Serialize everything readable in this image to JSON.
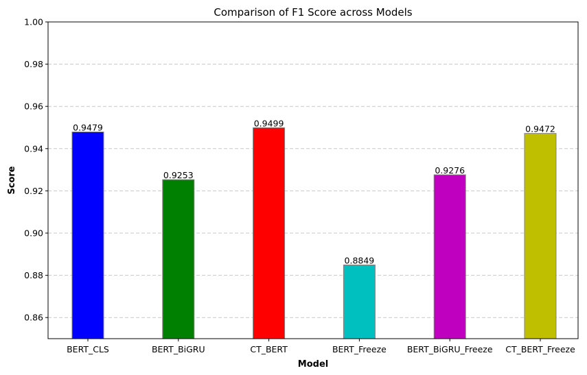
{
  "chart_data": {
    "type": "bar",
    "title": "Comparison of F1 Score across Models",
    "xlabel": "Model",
    "ylabel": "Score",
    "categories": [
      "BERT_CLS",
      "BERT_BiGRU",
      "CT_BERT",
      "BERT_Freeze",
      "BERT_BiGRU_Freeze",
      "CT_BERT_Freeze"
    ],
    "values": [
      0.9479,
      0.9253,
      0.9499,
      0.8849,
      0.9276,
      0.9472
    ],
    "data_labels": [
      "0.9479",
      "0.9253",
      "0.9499",
      "0.8849",
      "0.9276",
      "0.9472"
    ],
    "colors": [
      "#0000ff",
      "#008000",
      "#ff0000",
      "#00bfbf",
      "#bf00bf",
      "#bfbf00"
    ],
    "bar_edge_color": "#808080",
    "ylim": [
      0.85,
      1.0
    ],
    "yticks": [
      0.86,
      0.88,
      0.9,
      0.92,
      0.94,
      0.96,
      0.98,
      1.0
    ],
    "ytick_labels": [
      "0.86",
      "0.88",
      "0.90",
      "0.92",
      "0.94",
      "0.96",
      "0.98",
      "1.00"
    ],
    "grid": "y, dashed",
    "grid_color": "#c8c8c8"
  }
}
